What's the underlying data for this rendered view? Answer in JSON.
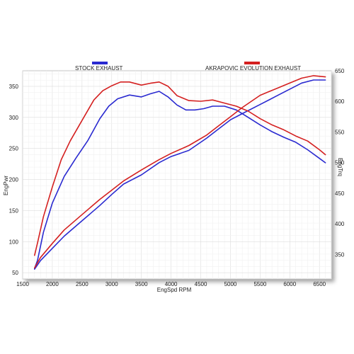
{
  "chart_data": {
    "type": "line",
    "xlabel": "EngSpd  RPM",
    "ylabel_left": "EngPwr",
    "ylabel_right": "EngTrq",
    "xlim": [
      1500,
      6700
    ],
    "ylim_left": [
      40,
      375
    ],
    "ylim_right": [
      310,
      650
    ],
    "x_ticks": [
      1500,
      2000,
      2500,
      3000,
      3500,
      4000,
      4500,
      5000,
      5500,
      6000,
      6500
    ],
    "y_ticks_left": [
      50,
      100,
      150,
      200,
      250,
      300,
      350
    ],
    "y_ticks_right": [
      350,
      400,
      450,
      500,
      550,
      600,
      650
    ],
    "grid": true,
    "legend_position": "top",
    "series": [
      {
        "name": "STOCK EXHAUST",
        "color": "#2a2ad0",
        "power": {
          "axis": "left",
          "x": [
            1700,
            1750,
            1850,
            2000,
            2200,
            2400,
            2600,
            2800,
            2950,
            3100,
            3300,
            3500,
            3650,
            3800,
            3950,
            4100,
            4250,
            4400,
            4550,
            4700,
            4900,
            5100,
            5300,
            5500,
            5700,
            5900,
            6100,
            6300,
            6500,
            6600
          ],
          "y": [
            57,
            70,
            115,
            162,
            205,
            235,
            263,
            298,
            318,
            330,
            336,
            333,
            338,
            342,
            333,
            320,
            312,
            312,
            314,
            318,
            318,
            312,
            300,
            288,
            277,
            268,
            260,
            248,
            234,
            227
          ]
        },
        "torque": {
          "axis": "right",
          "x": [
            1700,
            1800,
            2000,
            2200,
            2500,
            2800,
            3000,
            3200,
            3500,
            3800,
            4000,
            4300,
            4600,
            4800,
            5000,
            5200,
            5500,
            5800,
            6000,
            6200,
            6400,
            6600
          ],
          "y": [
            326,
            340,
            360,
            380,
            405,
            430,
            448,
            465,
            480,
            500,
            510,
            520,
            540,
            555,
            570,
            580,
            595,
            610,
            620,
            630,
            635,
            635
          ]
        }
      },
      {
        "name": "AKRAPOVIC EVOLUTION EXHAUST",
        "color": "#d42020",
        "power": {
          "axis": "left",
          "x": [
            1700,
            1750,
            1850,
            2000,
            2150,
            2300,
            2500,
            2700,
            2850,
            3000,
            3150,
            3300,
            3500,
            3650,
            3800,
            3950,
            4100,
            4300,
            4500,
            4700,
            4900,
            5100,
            5300,
            5500,
            5700,
            5900,
            6100,
            6300,
            6500,
            6600
          ],
          "y": [
            78,
            98,
            140,
            188,
            232,
            262,
            295,
            328,
            343,
            351,
            357,
            357,
            352,
            355,
            357,
            350,
            335,
            327,
            326,
            328,
            323,
            318,
            310,
            298,
            288,
            280,
            270,
            262,
            248,
            240
          ]
        },
        "torque": {
          "axis": "right",
          "x": [
            1700,
            1800,
            2000,
            2200,
            2500,
            2800,
            3000,
            3200,
            3500,
            3800,
            4000,
            4300,
            4600,
            4800,
            5000,
            5200,
            5500,
            5800,
            6000,
            6200,
            6400,
            6600
          ],
          "y": [
            328,
            345,
            368,
            390,
            415,
            440,
            455,
            470,
            488,
            505,
            515,
            528,
            545,
            560,
            575,
            590,
            610,
            622,
            630,
            638,
            642,
            640
          ]
        }
      }
    ]
  }
}
